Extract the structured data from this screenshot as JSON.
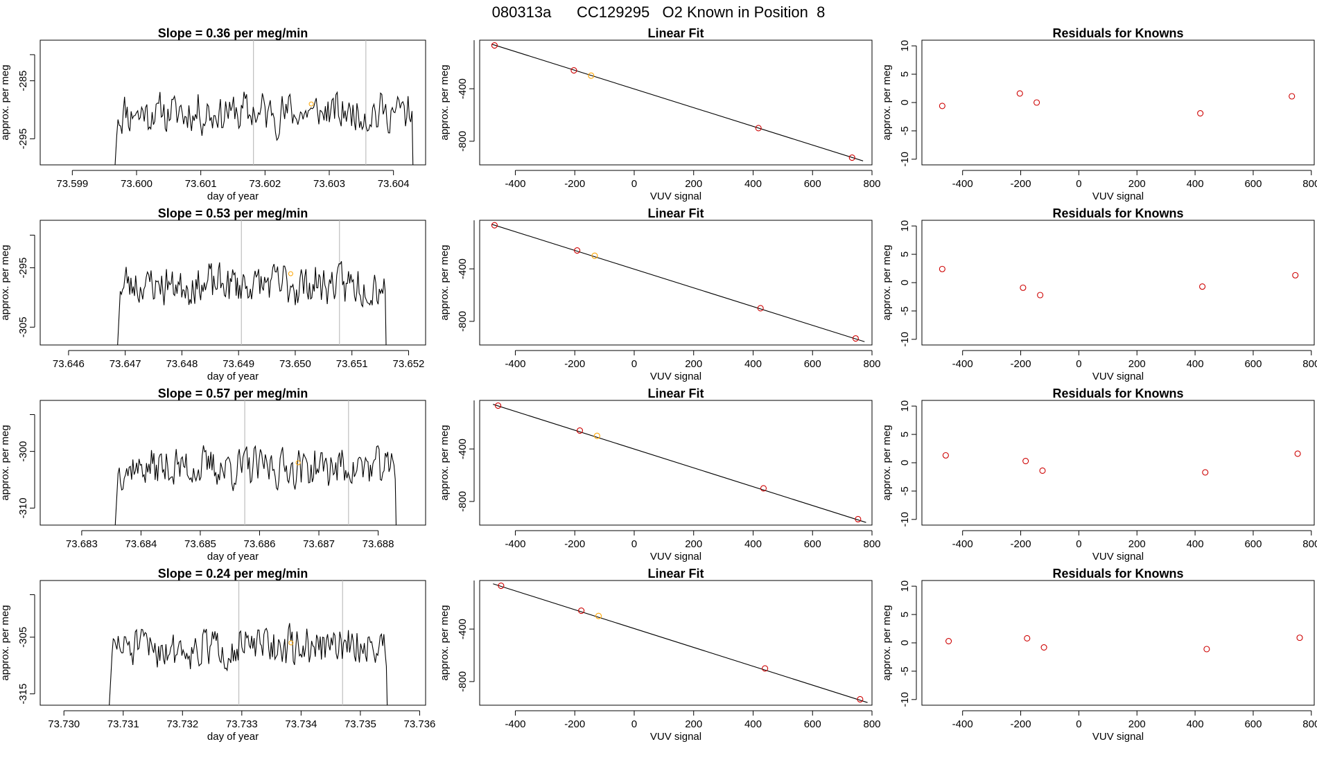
{
  "figure_title": "080313a      CC129295   O2 Known in Position  8",
  "colors": {
    "trace": "#000000",
    "marker": "#FFA500",
    "residual": "#CD0000",
    "divider": "#BEBEBE",
    "fit": "#000000"
  },
  "chart_data": [
    {
      "type": "line",
      "panel": "timeseries",
      "title": "Slope =  0.36  per meg/min",
      "xlabel": "day of year",
      "ylabel": "approx. per meg",
      "xlim": [
        73.5985,
        73.6045
      ],
      "ylim": [
        -299.5,
        -278
      ],
      "xticks": [
        "73.599",
        "73.600",
        "73.601",
        "73.602",
        "73.603",
        "73.604"
      ],
      "yticks": [
        -285,
        -295
      ],
      "data_range": [
        73.59965,
        73.60435
      ],
      "mean": -290.5,
      "amp": 4.5,
      "seed": 11,
      "dividers": [
        73.60182,
        73.60357
      ],
      "marker": [
        73.60272,
        -289
      ]
    },
    {
      "type": "line",
      "panel": "linear-fit",
      "title": "Linear Fit",
      "xlabel": "VUV signal",
      "ylabel": "approx. per meg",
      "xlim": [
        -520,
        800
      ],
      "ylim": [
        -980,
        -30
      ],
      "xticks": [
        -400,
        -200,
        0,
        200,
        400,
        600,
        800
      ],
      "yticks": [
        -400,
        -800
      ],
      "fit_line": [
        [
          -480,
          -60
        ],
        [
          770,
          -950
        ]
      ],
      "points": [
        [
          -470,
          -70,
          "red"
        ],
        [
          -203,
          -260,
          "red"
        ],
        [
          -145,
          -300,
          "orange"
        ],
        [
          418,
          -700,
          "red"
        ],
        [
          733,
          -925,
          "red"
        ]
      ]
    },
    {
      "type": "scatter",
      "panel": "residuals",
      "title": "Residuals for Knowns",
      "xlabel": "VUV signal",
      "ylabel": "approx. per meg",
      "xlim": [
        -540,
        810
      ],
      "ylim": [
        -11,
        11
      ],
      "xticks": [
        -400,
        -200,
        0,
        200,
        400,
        600,
        800
      ],
      "yticks": [
        10,
        5,
        0,
        -5,
        -10
      ],
      "points": [
        [
          -470,
          -0.6
        ],
        [
          -203,
          1.6
        ],
        [
          -145,
          0.0
        ],
        [
          418,
          -1.9
        ],
        [
          733,
          1.1
        ]
      ]
    },
    {
      "type": "line",
      "panel": "timeseries",
      "title": "Slope =  0.53  per meg/min",
      "xlabel": "day of year",
      "ylabel": "approx. per meg",
      "xlim": [
        73.6455,
        73.6523
      ],
      "ylim": [
        -308,
        -287
      ],
      "xticks": [
        "73.646",
        "73.647",
        "73.648",
        "73.649",
        "73.650",
        "73.651",
        "73.652"
      ],
      "yticks": [
        -295,
        -305
      ],
      "data_range": [
        73.64685,
        73.65165
      ],
      "mean": -297.8,
      "amp": 4.5,
      "seed": 23,
      "dividers": [
        73.64905,
        73.65078
      ],
      "marker": [
        73.64992,
        -296
      ]
    },
    {
      "type": "line",
      "panel": "linear-fit",
      "title": "Linear Fit",
      "xlabel": "VUV signal",
      "ylabel": "approx. per meg",
      "xlim": [
        -520,
        800
      ],
      "ylim": [
        -980,
        -30
      ],
      "xticks": [
        -400,
        -200,
        0,
        200,
        400,
        600,
        800
      ],
      "yticks": [
        -400,
        -800
      ],
      "fit_line": [
        [
          -480,
          -60
        ],
        [
          775,
          -955
        ]
      ],
      "points": [
        [
          -470,
          -68,
          "red"
        ],
        [
          -192,
          -260,
          "red"
        ],
        [
          -133,
          -300,
          "orange"
        ],
        [
          425,
          -700,
          "red"
        ],
        [
          745,
          -930,
          "red"
        ]
      ]
    },
    {
      "type": "scatter",
      "panel": "residuals",
      "title": "Residuals for Knowns",
      "xlabel": "VUV signal",
      "ylabel": "approx. per meg",
      "xlim": [
        -540,
        810
      ],
      "ylim": [
        -11,
        11
      ],
      "xticks": [
        -400,
        -200,
        0,
        200,
        400,
        600,
        800
      ],
      "yticks": [
        10,
        5,
        0,
        -5,
        -10
      ],
      "points": [
        [
          -470,
          2.4
        ],
        [
          -192,
          -0.9
        ],
        [
          -133,
          -2.2
        ],
        [
          425,
          -0.7
        ],
        [
          745,
          1.3
        ]
      ]
    },
    {
      "type": "line",
      "panel": "timeseries",
      "title": "Slope =  0.57  per meg/min",
      "xlabel": "day of year",
      "ylabel": "approx. per meg",
      "xlim": [
        73.6823,
        73.6888
      ],
      "ylim": [
        -313,
        -291
      ],
      "xticks": [
        "73.683",
        "73.684",
        "73.685",
        "73.686",
        "73.687",
        "73.688"
      ],
      "yticks": [
        -300,
        -310
      ],
      "data_range": [
        73.68355,
        73.68835
      ],
      "mean": -302.8,
      "amp": 4.5,
      "seed": 37,
      "dividers": [
        73.68575,
        73.6875
      ],
      "marker": [
        73.68665,
        -302
      ]
    },
    {
      "type": "line",
      "panel": "linear-fit",
      "title": "Linear Fit",
      "xlabel": "VUV signal",
      "ylabel": "approx. per meg",
      "xlim": [
        -520,
        800
      ],
      "ylim": [
        -980,
        -30
      ],
      "xticks": [
        -400,
        -200,
        0,
        200,
        400,
        600,
        800
      ],
      "yticks": [
        -400,
        -800
      ],
      "fit_line": [
        [
          -475,
          -60
        ],
        [
          780,
          -960
        ]
      ],
      "points": [
        [
          -458,
          -70,
          "red"
        ],
        [
          -183,
          -260,
          "red"
        ],
        [
          -125,
          -300,
          "orange"
        ],
        [
          435,
          -700,
          "red"
        ],
        [
          753,
          -935,
          "red"
        ]
      ]
    },
    {
      "type": "scatter",
      "panel": "residuals",
      "title": "Residuals for Knowns",
      "xlabel": "VUV signal",
      "ylabel": "approx. per meg",
      "xlim": [
        -540,
        810
      ],
      "ylim": [
        -11,
        11
      ],
      "xticks": [
        -400,
        -200,
        0,
        200,
        400,
        600,
        800
      ],
      "yticks": [
        10,
        5,
        0,
        -5,
        -10
      ],
      "points": [
        [
          -458,
          1.3
        ],
        [
          -183,
          0.3
        ],
        [
          -125,
          -1.4
        ],
        [
          435,
          -1.7
        ],
        [
          753,
          1.6
        ]
      ]
    },
    {
      "type": "line",
      "panel": "timeseries",
      "title": "Slope =  0.24  per meg/min",
      "xlabel": "day of year",
      "ylabel": "approx. per meg",
      "xlim": [
        73.7296,
        73.7361
      ],
      "ylim": [
        -317,
        -295
      ],
      "xticks": [
        "73.730",
        "73.731",
        "73.732",
        "73.733",
        "73.734",
        "73.735",
        "73.736"
      ],
      "yticks": [
        -305,
        -315
      ],
      "data_range": [
        73.73075,
        73.7355
      ],
      "mean": -306.8,
      "amp": 4.5,
      "seed": 51,
      "dividers": [
        73.73295,
        73.7347
      ],
      "marker": [
        73.73383,
        -306
      ]
    },
    {
      "type": "line",
      "panel": "linear-fit",
      "title": "Linear Fit",
      "xlabel": "VUV signal",
      "ylabel": "approx. per meg",
      "xlim": [
        -520,
        800
      ],
      "ylim": [
        -980,
        -30
      ],
      "xticks": [
        -400,
        -200,
        0,
        200,
        400,
        600,
        800
      ],
      "yticks": [
        -400,
        -800
      ],
      "fit_line": [
        [
          -475,
          -55
        ],
        [
          785,
          -960
        ]
      ],
      "points": [
        [
          -448,
          -70,
          "red"
        ],
        [
          -178,
          -260,
          "red"
        ],
        [
          -120,
          -300,
          "orange"
        ],
        [
          440,
          -700,
          "red"
        ],
        [
          760,
          -935,
          "red"
        ]
      ]
    },
    {
      "type": "scatter",
      "panel": "residuals",
      "title": "Residuals for Knowns",
      "xlabel": "VUV signal",
      "ylabel": "approx. per meg",
      "xlim": [
        -540,
        810
      ],
      "ylim": [
        -11,
        11
      ],
      "xticks": [
        -400,
        -200,
        0,
        200,
        400,
        600,
        800
      ],
      "yticks": [
        10,
        5,
        0,
        -5,
        -10
      ],
      "points": [
        [
          -448,
          0.3
        ],
        [
          -178,
          0.8
        ],
        [
          -120,
          -0.8
        ],
        [
          440,
          -1.1
        ],
        [
          760,
          0.9
        ]
      ]
    }
  ]
}
